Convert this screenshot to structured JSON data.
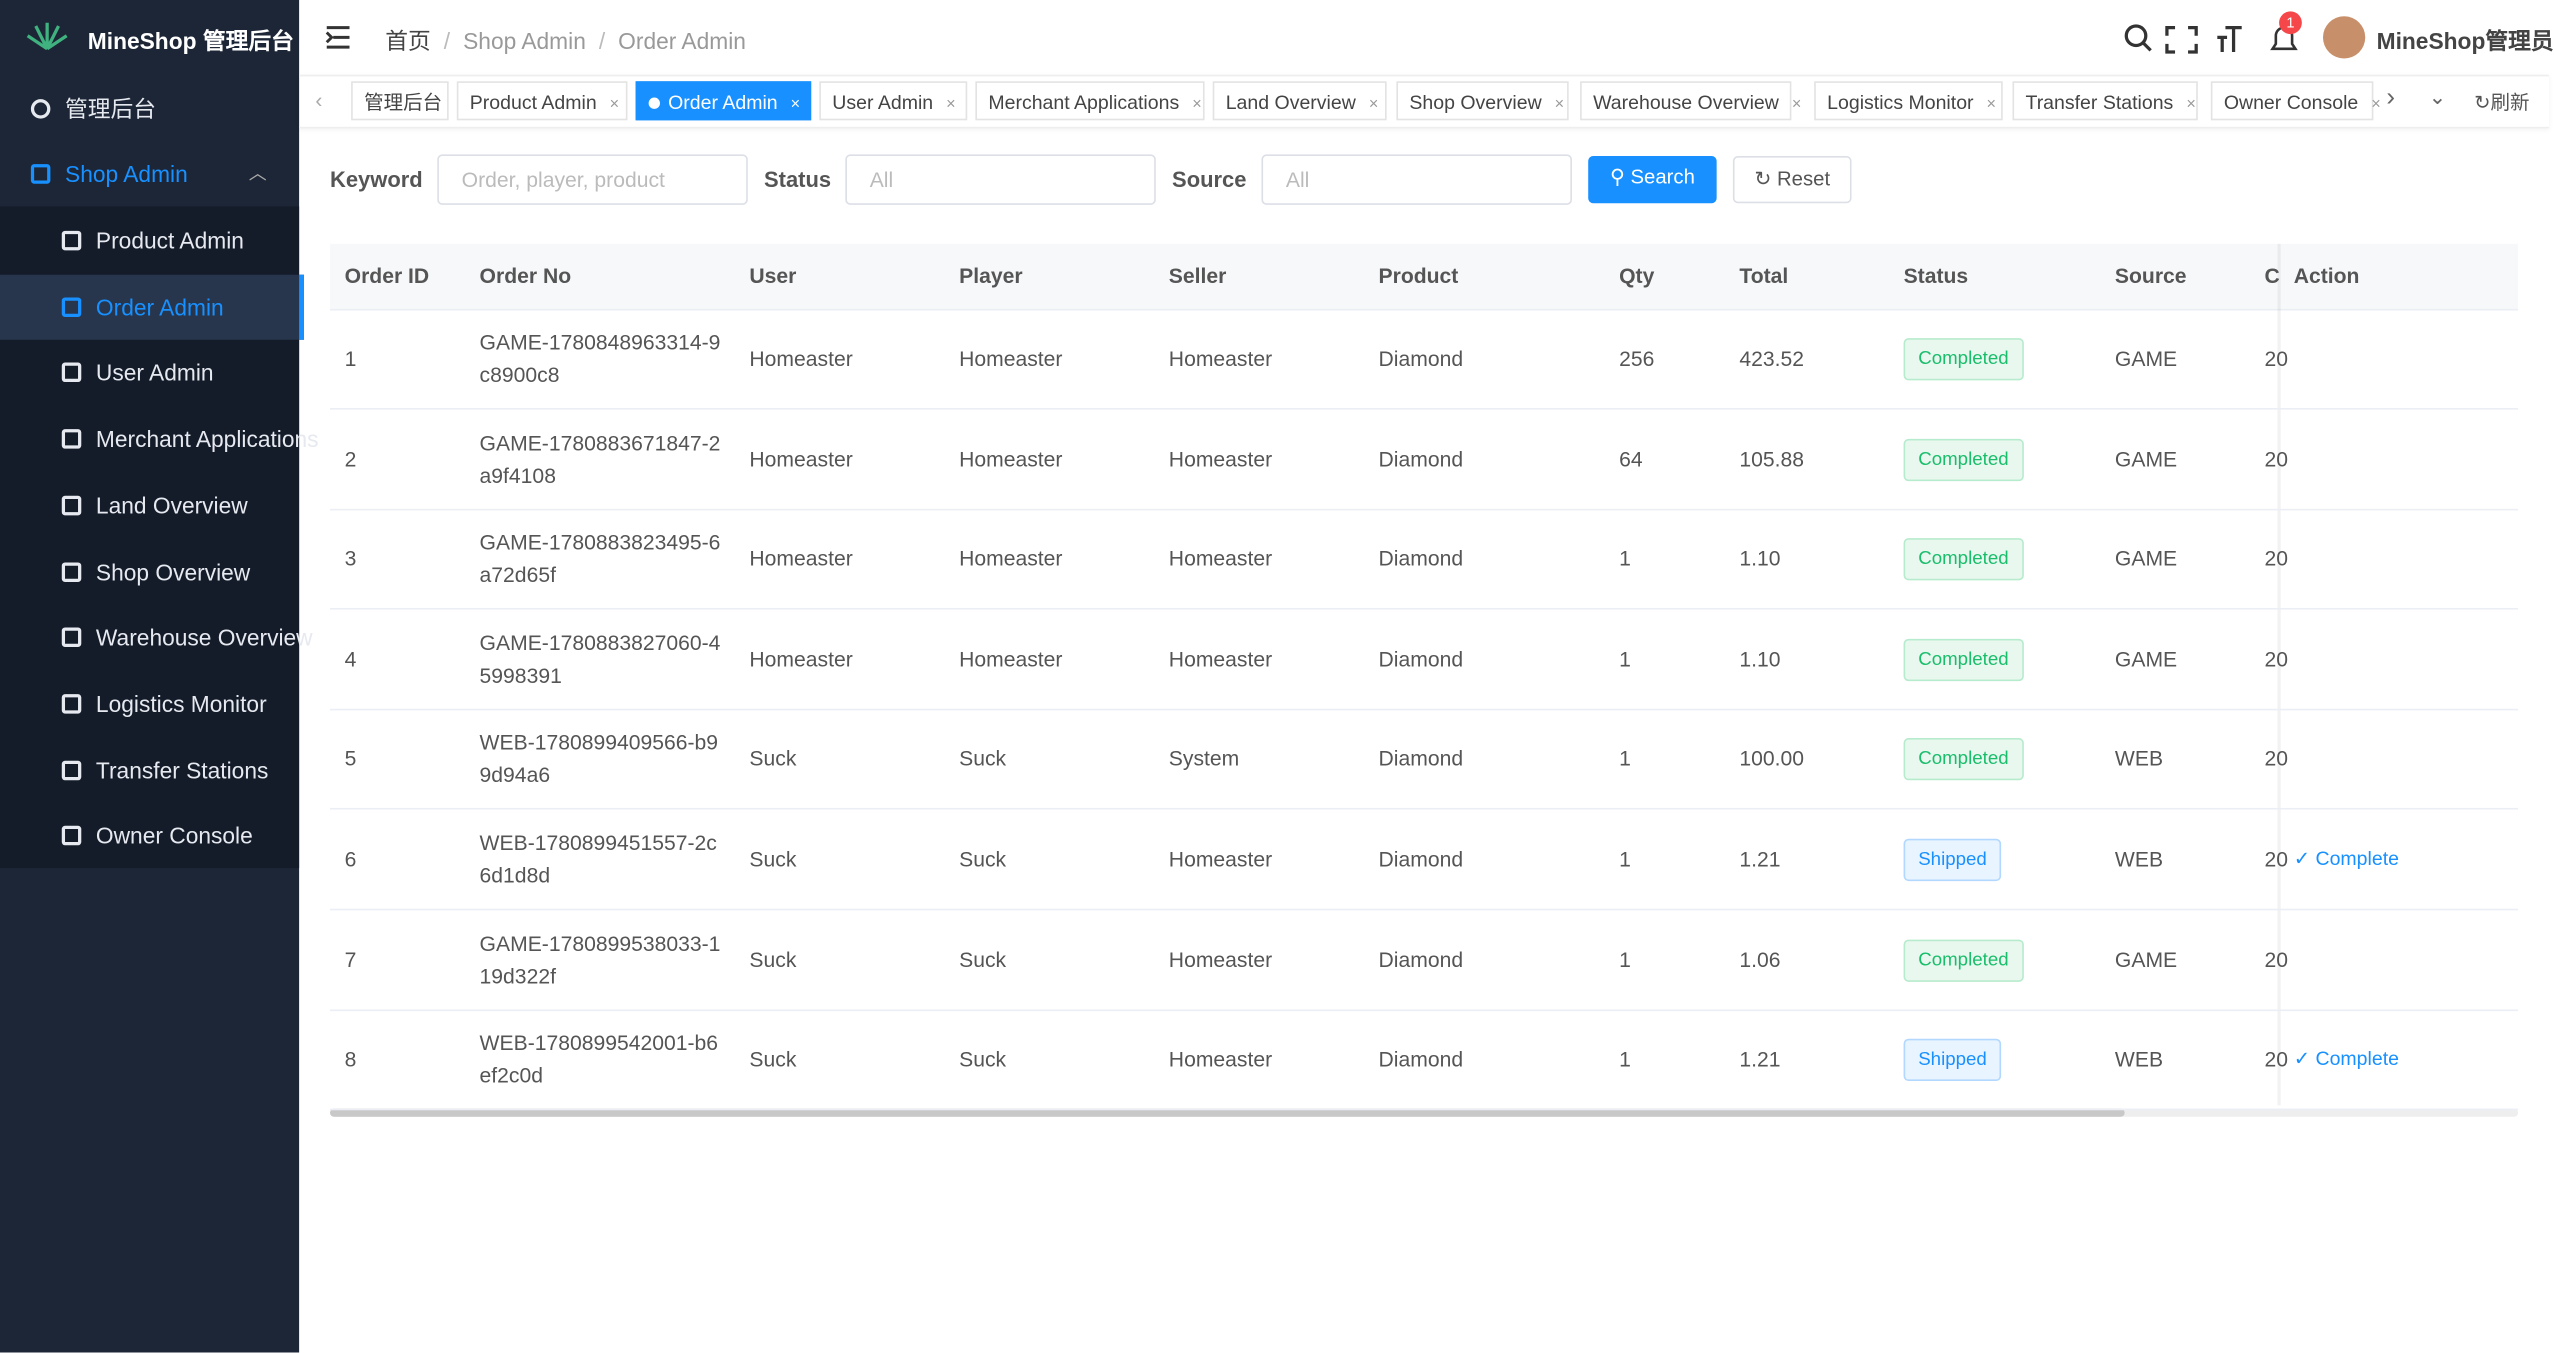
{
  "brand": "MineShop 管理后台",
  "sidebar": {
    "home": "管理后台",
    "group": "Shop Admin",
    "children": [
      "Product Admin",
      "Order Admin",
      "User Admin",
      "Merchant Applications",
      "Land Overview",
      "Shop Overview",
      "Warehouse Overview",
      "Logistics Monitor",
      "Transfer Stations",
      "Owner Console"
    ],
    "active": 1
  },
  "header": {
    "breadcrumb": [
      "首页",
      "Shop Admin",
      "Order Admin"
    ],
    "notifications": "1",
    "user": "MineShop管理员"
  },
  "tabs": {
    "items": [
      "管理后台",
      "Product Admin",
      "Order Admin",
      "User Admin",
      "Merchant Applications",
      "Land Overview",
      "Shop Overview",
      "Warehouse Overview",
      "Logistics Monitor",
      "Transfer Stations",
      "Owner Console"
    ],
    "active": 2,
    "refresh": "刷新"
  },
  "filters": {
    "keyword_label": "Keyword",
    "keyword_placeholder": "Order, player, product",
    "status_label": "Status",
    "status_value": "All",
    "source_label": "Source",
    "source_value": "All",
    "search": "Search",
    "reset": "Reset"
  },
  "table": {
    "columns": [
      "Order ID",
      "Order No",
      "User",
      "Player",
      "Seller",
      "Product",
      "Qty",
      "Total",
      "Status",
      "Source",
      "C",
      "Action"
    ],
    "rows": [
      [
        "1",
        "GAME-1780848963314-9c8900c8",
        "Homeaster",
        "Homeaster",
        "Homeaster",
        "Diamond",
        "256",
        "423.52",
        "Completed",
        "GAME",
        "20",
        null
      ],
      [
        "2",
        "GAME-1780883671847-2a9f4108",
        "Homeaster",
        "Homeaster",
        "Homeaster",
        "Diamond",
        "64",
        "105.88",
        "Completed",
        "GAME",
        "20",
        null
      ],
      [
        "3",
        "GAME-1780883823495-6a72d65f",
        "Homeaster",
        "Homeaster",
        "Homeaster",
        "Diamond",
        "1",
        "1.10",
        "Completed",
        "GAME",
        "20",
        null
      ],
      [
        "4",
        "GAME-1780883827060-45998391",
        "Homeaster",
        "Homeaster",
        "Homeaster",
        "Diamond",
        "1",
        "1.10",
        "Completed",
        "GAME",
        "20",
        null
      ],
      [
        "5",
        "WEB-1780899409566-b99d94a6",
        "Suck",
        "Suck",
        "System",
        "Diamond",
        "1",
        "100.00",
        "Completed",
        "WEB",
        "20",
        null
      ],
      [
        "6",
        "WEB-1780899451557-2c6d1d8d",
        "Suck",
        "Suck",
        "Homeaster",
        "Diamond",
        "1",
        "1.21",
        "Shipped",
        "WEB",
        "20",
        "Complete"
      ],
      [
        "7",
        "GAME-1780899538033-119d322f",
        "Suck",
        "Suck",
        "Homeaster",
        "Diamond",
        "1",
        "1.06",
        "Completed",
        "GAME",
        "20",
        null
      ],
      [
        "8",
        "WEB-1780899542001-b6ef2c0d",
        "Suck",
        "Suck",
        "Homeaster",
        "Diamond",
        "1",
        "1.21",
        "Shipped",
        "WEB",
        "20",
        "Complete"
      ]
    ]
  }
}
